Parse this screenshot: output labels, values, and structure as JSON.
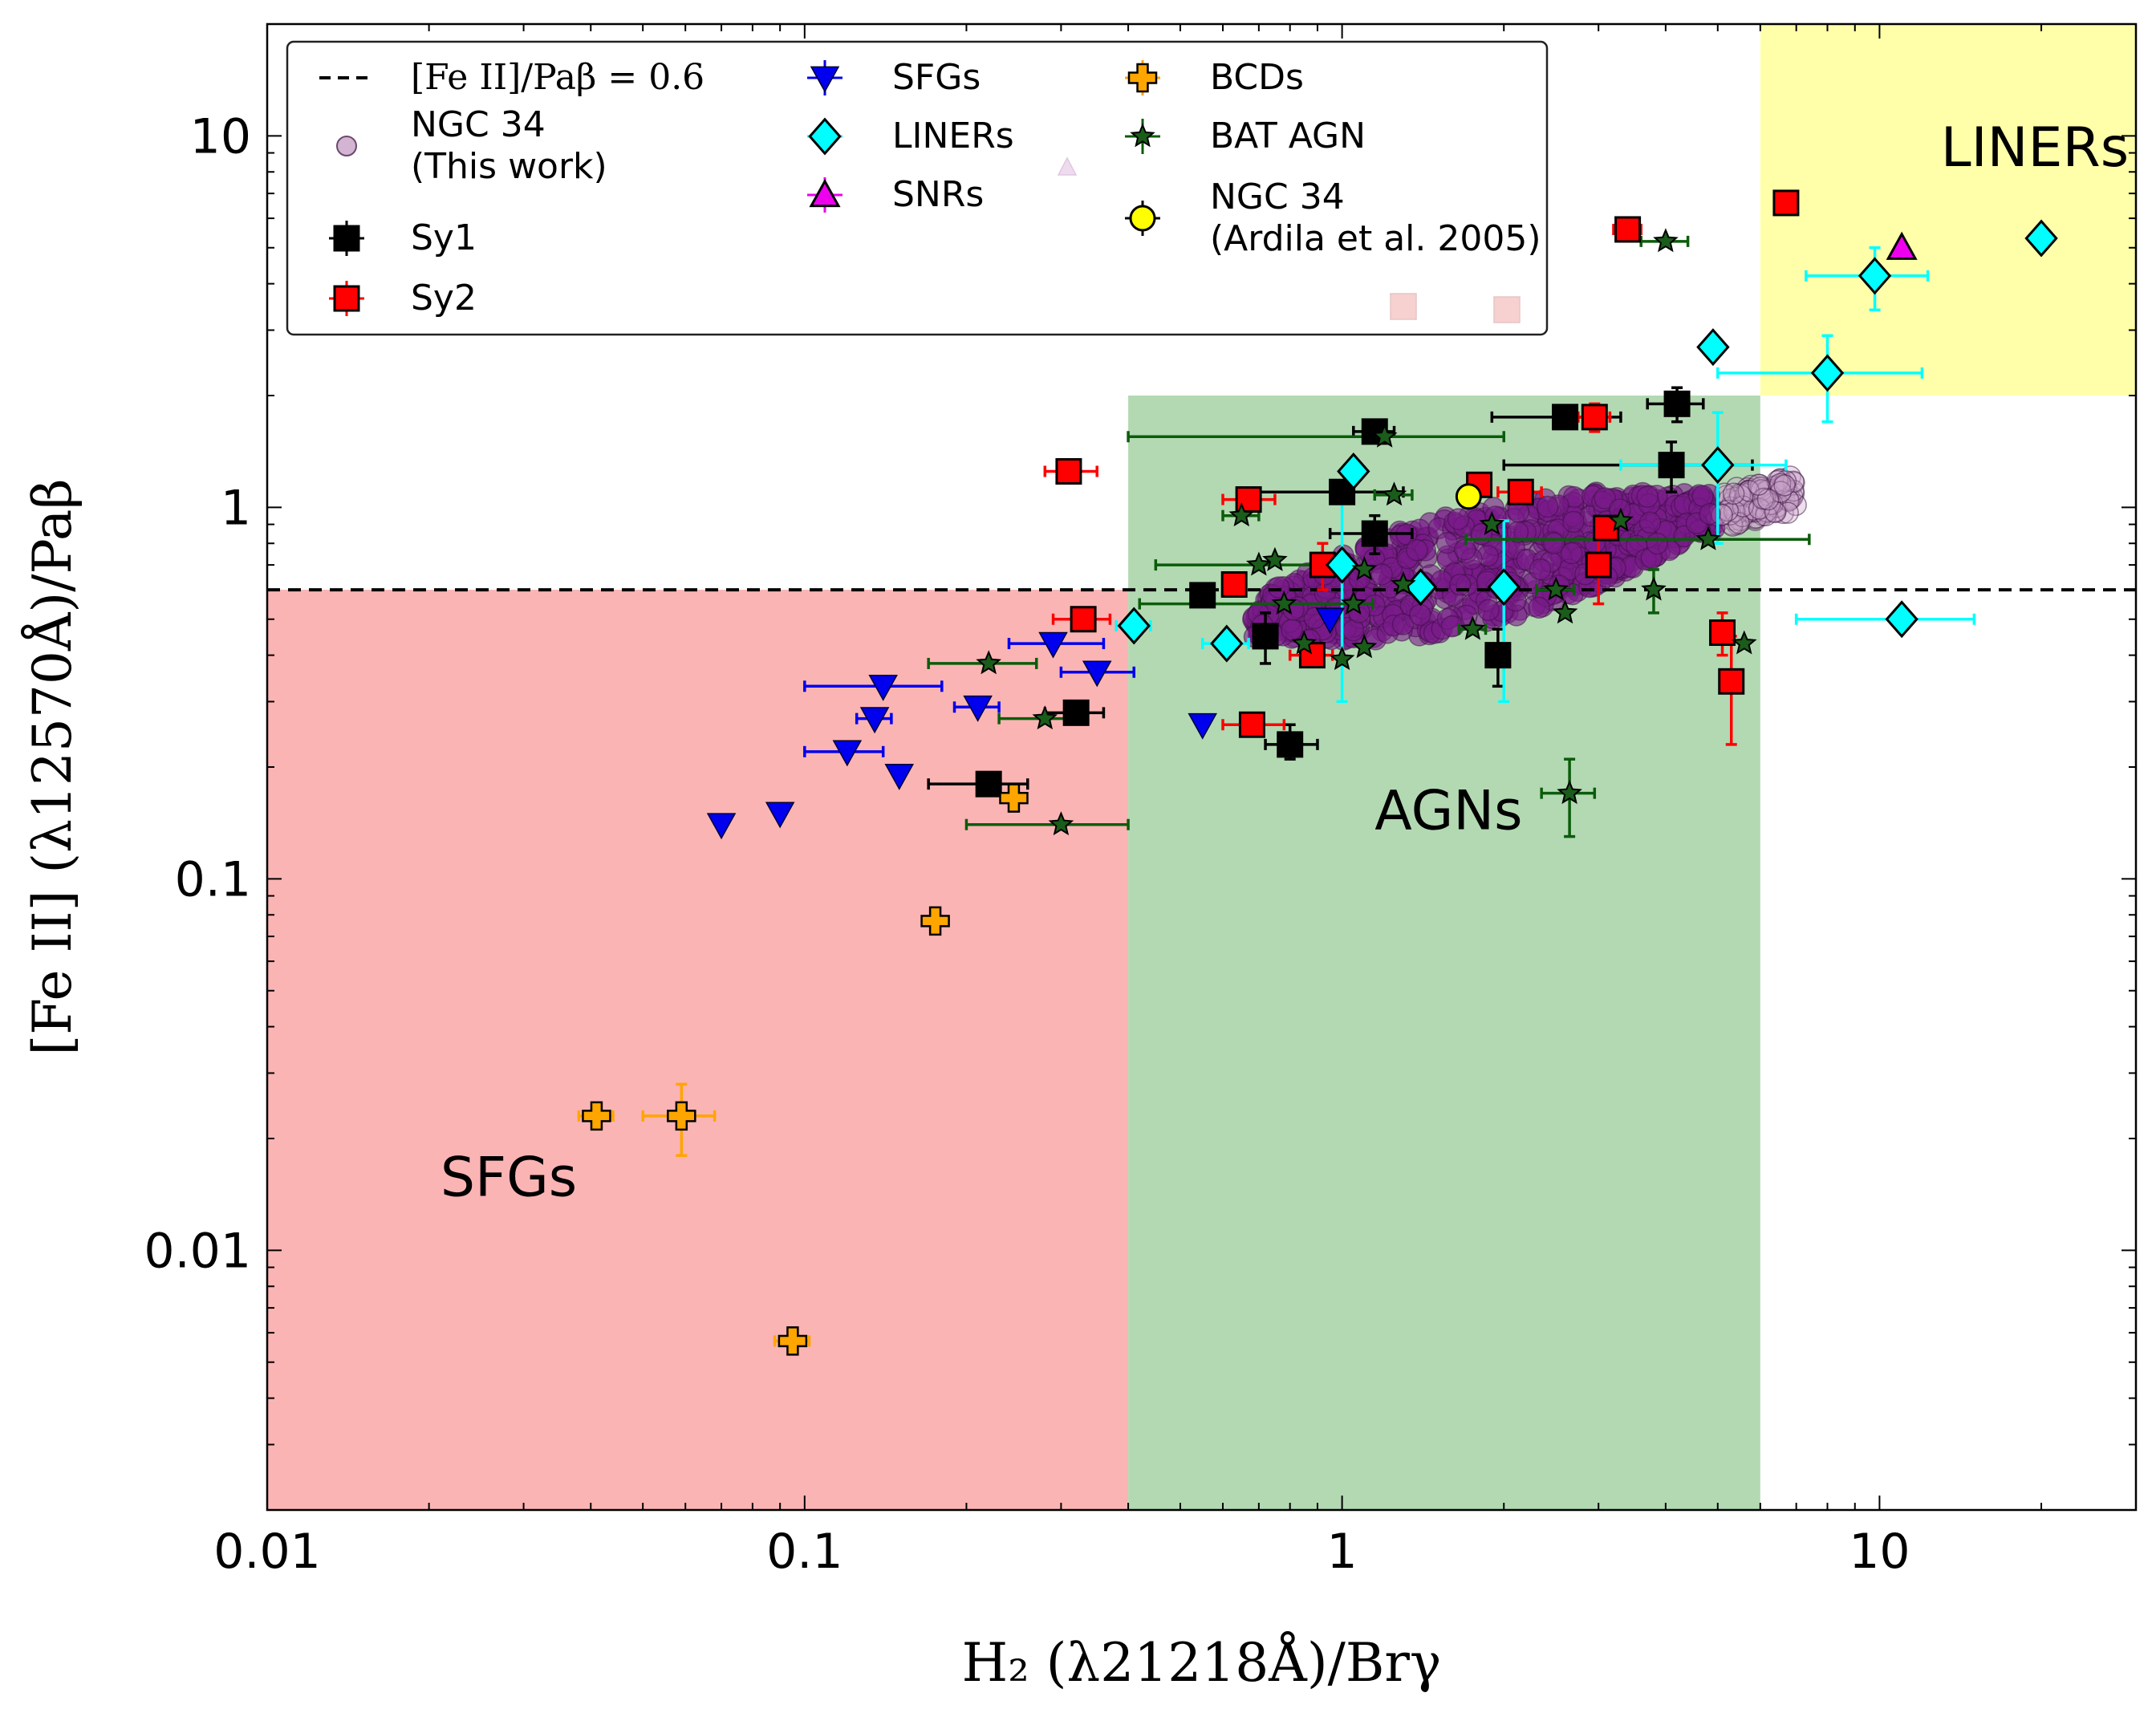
{
  "chart_data": {
    "type": "scatter",
    "xscale": "log",
    "yscale": "log",
    "xlim": [
      0.01,
      30
    ],
    "ylim": [
      0.002,
      20
    ],
    "xlabel": "H₂ (λ21218Å)/Brγ",
    "ylabel": "[Fe II] (λ12570Å)/Paβ",
    "x_ticks": [
      {
        "value": 0.01,
        "label": "0.01"
      },
      {
        "value": 0.1,
        "label": "0.1"
      },
      {
        "value": 1,
        "label": "1"
      },
      {
        "value": 10,
        "label": "10"
      }
    ],
    "y_ticks": [
      {
        "value": 0.01,
        "label": "0.01"
      },
      {
        "value": 0.1,
        "label": "0.1"
      },
      {
        "value": 1,
        "label": "1"
      },
      {
        "value": 10,
        "label": "10"
      }
    ],
    "regions": [
      {
        "name": "SFGs",
        "label": "SFGs",
        "x": [
          0.01,
          0.4
        ],
        "y": [
          0.002,
          0.6
        ],
        "color": "#fbb4b4",
        "label_at": [
          0.021,
          0.014
        ]
      },
      {
        "name": "AGNs",
        "label": "AGNs",
        "x": [
          0.4,
          6
        ],
        "y": [
          0.002,
          2
        ],
        "color": "#b3d9b3",
        "label_at": [
          1.15,
          0.136
        ]
      },
      {
        "name": "LINERs",
        "label": "LINERs",
        "x": [
          6,
          30
        ],
        "y": [
          2,
          20
        ],
        "color": "#ffffaa",
        "label_at": [
          13,
          8.3
        ]
      }
    ],
    "hline": {
      "y": 0.6,
      "label": "[Fe II]/Paβ = 0.6"
    },
    "legend": {
      "position": "top-left",
      "entries": [
        {
          "label": "[Fe II]/Paβ = 0.6",
          "marker": "dash",
          "color": "#000000"
        },
        {
          "label": "NGC 34",
          "label2": "(This work)",
          "marker": "circle-faint",
          "color": "#c8a2c8"
        },
        {
          "label": "Sy1",
          "marker": "square",
          "color": "#000000"
        },
        {
          "label": "Sy2",
          "marker": "square",
          "color": "#ff0000"
        },
        {
          "label": "SFGs",
          "marker": "triangle-down",
          "color": "#0000ee"
        },
        {
          "label": "LINERs",
          "marker": "diamond",
          "color": "#00ffff"
        },
        {
          "label": "SNRs",
          "marker": "triangle-up",
          "color": "#ee00ee"
        },
        {
          "label": "BCDs",
          "marker": "plus",
          "color": "#ffa500"
        },
        {
          "label": "BAT AGN",
          "marker": "star",
          "color": "#1a5c1a"
        },
        {
          "label": "NGC 34",
          "label2": "(Ardila et al. 2005)",
          "marker": "circle",
          "color": "#ffff00"
        }
      ]
    },
    "series": [
      {
        "name": "NGC 34 (This work)",
        "marker": "circle",
        "color": "#7a1a8a",
        "cloud": {
          "x_range": [
            0.65,
            7.0
          ],
          "y_range": [
            0.5,
            1.3
          ],
          "count": 900
        }
      },
      {
        "name": "Sy1",
        "marker": "square",
        "color": "#000000",
        "ecolor": "#000000",
        "points": [
          {
            "x": 0.22,
            "y": 0.18,
            "xerr": [
              0.17,
              0.26
            ]
          },
          {
            "x": 0.32,
            "y": 0.28,
            "xerr": [
              0.28,
              0.36
            ]
          },
          {
            "x": 0.55,
            "y": 0.58
          },
          {
            "x": 0.72,
            "y": 0.45,
            "yerr": [
              0.38,
              0.52
            ]
          },
          {
            "x": 0.8,
            "y": 0.23,
            "xerr": [
              0.72,
              0.9
            ],
            "yerr": [
              0.21,
              0.26
            ]
          },
          {
            "x": 1.0,
            "y": 1.1,
            "xerr": [
              0.65,
              1.3
            ]
          },
          {
            "x": 1.15,
            "y": 1.6,
            "xerr": [
              1.05,
              1.25
            ],
            "yerr": [
              1.5,
              1.7
            ]
          },
          {
            "x": 1.15,
            "y": 0.85,
            "xerr": [
              0.95,
              1.35
            ],
            "yerr": [
              0.75,
              0.95
            ]
          },
          {
            "x": 1.95,
            "y": 0.4,
            "yerr": [
              0.33,
              0.47
            ]
          },
          {
            "x": 2.6,
            "y": 1.75,
            "xerr": [
              1.9,
              3.3
            ]
          },
          {
            "x": 4.1,
            "y": 1.3,
            "xerr": [
              2.0,
              5.8
            ],
            "yerr": [
              1.1,
              1.5
            ]
          },
          {
            "x": 4.2,
            "y": 1.9,
            "xerr": [
              3.7,
              4.7
            ],
            "yerr": [
              1.7,
              2.1
            ]
          }
        ]
      },
      {
        "name": "Sy2",
        "marker": "square",
        "color": "#ff0000",
        "ecolor": "#ff0000",
        "points": [
          {
            "x": 0.31,
            "y": 1.25,
            "xerr": [
              0.28,
              0.35
            ]
          },
          {
            "x": 0.33,
            "y": 0.5,
            "xerr": [
              0.29,
              0.37
            ]
          },
          {
            "x": 0.63,
            "y": 0.62
          },
          {
            "x": 0.67,
            "y": 1.05,
            "xerr": [
              0.6,
              0.75
            ]
          },
          {
            "x": 0.68,
            "y": 0.26,
            "xerr": [
              0.6,
              0.78
            ]
          },
          {
            "x": 0.88,
            "y": 0.4,
            "xerr": [
              0.8,
              0.96
            ]
          },
          {
            "x": 0.92,
            "y": 0.7,
            "yerr": [
              0.6,
              0.8
            ]
          },
          {
            "x": 1.8,
            "y": 1.15
          },
          {
            "x": 2.15,
            "y": 1.1,
            "xerr": [
              1.95,
              2.35
            ]
          },
          {
            "x": 3.0,
            "y": 0.7,
            "yerr": [
              0.55,
              0.85
            ]
          },
          {
            "x": 3.1,
            "y": 0.88
          },
          {
            "x": 2.95,
            "y": 1.75,
            "xerr": [
              2.75,
              3.15
            ],
            "yerr": [
              1.6,
              1.9
            ]
          },
          {
            "x": 3.4,
            "y": 5.6,
            "xerr": [
              3.2,
              3.6
            ]
          },
          {
            "x": 5.1,
            "y": 0.46,
            "yerr": [
              0.4,
              0.52
            ]
          },
          {
            "x": 5.3,
            "y": 0.34,
            "yerr": [
              0.23,
              0.45
            ]
          },
          {
            "x": 6.7,
            "y": 6.6
          }
        ]
      },
      {
        "name": "SFGs",
        "marker": "triangle-down",
        "color": "#0000ee",
        "ecolor": "#0000ee",
        "points": [
          {
            "x": 0.07,
            "y": 0.14
          },
          {
            "x": 0.09,
            "y": 0.15
          },
          {
            "x": 0.12,
            "y": 0.22,
            "xerr": [
              0.1,
              0.14
            ]
          },
          {
            "x": 0.135,
            "y": 0.27,
            "xerr": [
              0.125,
              0.145
            ]
          },
          {
            "x": 0.14,
            "y": 0.33,
            "xerr": [
              0.1,
              0.18
            ]
          },
          {
            "x": 0.15,
            "y": 0.19
          },
          {
            "x": 0.21,
            "y": 0.29,
            "xerr": [
              0.19,
              0.23
            ]
          },
          {
            "x": 0.29,
            "y": 0.43,
            "xerr": [
              0.24,
              0.36
            ]
          },
          {
            "x": 0.35,
            "y": 0.36,
            "xerr": [
              0.3,
              0.41
            ]
          },
          {
            "x": 0.55,
            "y": 0.26
          },
          {
            "x": 0.95,
            "y": 0.5
          }
        ]
      },
      {
        "name": "LINERs",
        "marker": "diamond",
        "color": "#00ffff",
        "ecolor": "#00ffff",
        "points": [
          {
            "x": 0.41,
            "y": 0.48,
            "xerr": [
              0.38,
              0.44
            ]
          },
          {
            "x": 0.61,
            "y": 0.43,
            "xerr": [
              0.55,
              0.67
            ]
          },
          {
            "x": 1.0,
            "y": 0.7,
            "yerr": [
              0.3,
              1.1
            ]
          },
          {
            "x": 1.05,
            "y": 1.25
          },
          {
            "x": 1.4,
            "y": 0.61
          },
          {
            "x": 2.0,
            "y": 0.61,
            "yerr": [
              0.3,
              0.92
            ]
          },
          {
            "x": 4.9,
            "y": 2.7
          },
          {
            "x": 5.0,
            "y": 1.3,
            "xerr": [
              3.3,
              6.7
            ],
            "yerr": [
              0.8,
              1.8
            ]
          },
          {
            "x": 8.0,
            "y": 2.3,
            "xerr": [
              5.0,
              12.0
            ],
            "yerr": [
              1.7,
              2.9
            ]
          },
          {
            "x": 9.8,
            "y": 4.2,
            "xerr": [
              7.3,
              12.3
            ],
            "yerr": [
              3.4,
              5.0
            ]
          },
          {
            "x": 11.0,
            "y": 0.5,
            "xerr": [
              7.0,
              15.0
            ]
          },
          {
            "x": 20.0,
            "y": 5.3
          }
        ]
      },
      {
        "name": "SNRs",
        "marker": "triangle-up",
        "color": "#ee00ee",
        "ecolor": "#ee00ee",
        "points": [
          {
            "x": 11.0,
            "y": 5.0
          }
        ]
      },
      {
        "name": "BCDs",
        "marker": "plus",
        "color": "#ffa500",
        "ecolor": "#ffa500",
        "points": [
          {
            "x": 0.041,
            "y": 0.023,
            "xerr": [
              0.038,
              0.044
            ]
          },
          {
            "x": 0.059,
            "y": 0.023,
            "xerr": [
              0.05,
              0.068
            ],
            "yerr": [
              0.018,
              0.028
            ]
          },
          {
            "x": 0.095,
            "y": 0.0057,
            "xerr": [
              0.088,
              0.102
            ]
          },
          {
            "x": 0.175,
            "y": 0.077
          },
          {
            "x": 0.245,
            "y": 0.165
          }
        ]
      },
      {
        "name": "BAT AGN",
        "marker": "star",
        "color": "#1a5c1a",
        "ecolor": "#0b5c0b",
        "points": [
          {
            "x": 0.22,
            "y": 0.38,
            "xerr": [
              0.17,
              0.27
            ]
          },
          {
            "x": 0.28,
            "y": 0.27,
            "xerr": [
              0.23,
              0.33
            ]
          },
          {
            "x": 0.3,
            "y": 0.14,
            "xerr": [
              0.2,
              0.4
            ]
          },
          {
            "x": 0.65,
            "y": 0.95,
            "xerr": [
              0.6,
              0.7
            ]
          },
          {
            "x": 0.7,
            "y": 0.7,
            "xerr": [
              0.45,
              0.95
            ]
          },
          {
            "x": 0.75,
            "y": 0.72
          },
          {
            "x": 0.78,
            "y": 0.55,
            "xerr": [
              0.42,
              1.14
            ]
          },
          {
            "x": 0.85,
            "y": 0.43
          },
          {
            "x": 1.0,
            "y": 0.39
          },
          {
            "x": 1.05,
            "y": 0.55
          },
          {
            "x": 1.1,
            "y": 0.42
          },
          {
            "x": 1.1,
            "y": 0.68
          },
          {
            "x": 1.2,
            "y": 1.55,
            "xerr": [
              0.4,
              2.0
            ]
          },
          {
            "x": 1.25,
            "y": 1.08,
            "xerr": [
              1.15,
              1.35
            ]
          },
          {
            "x": 1.3,
            "y": 0.62
          },
          {
            "x": 1.75,
            "y": 0.47,
            "xerr": [
              1.65,
              1.85
            ]
          },
          {
            "x": 1.9,
            "y": 0.9
          },
          {
            "x": 2.5,
            "y": 0.6,
            "xerr": [
              2.3,
              2.7
            ]
          },
          {
            "x": 2.6,
            "y": 0.52
          },
          {
            "x": 2.65,
            "y": 0.17,
            "xerr": [
              2.35,
              2.95
            ],
            "yerr": [
              0.13,
              0.21
            ]
          },
          {
            "x": 3.3,
            "y": 0.92
          },
          {
            "x": 3.8,
            "y": 0.6,
            "yerr": [
              0.52,
              0.68
            ]
          },
          {
            "x": 4.0,
            "y": 5.2,
            "xerr": [
              3.6,
              4.4
            ]
          },
          {
            "x": 4.8,
            "y": 0.82,
            "xerr": [
              1.7,
              7.4
            ]
          },
          {
            "x": 5.6,
            "y": 0.43
          }
        ]
      },
      {
        "name": "NGC 34 (Ardila et al. 2005)",
        "marker": "circle",
        "color": "#ffff00",
        "points": [
          {
            "x": 1.72,
            "y": 1.07
          }
        ]
      }
    ]
  }
}
